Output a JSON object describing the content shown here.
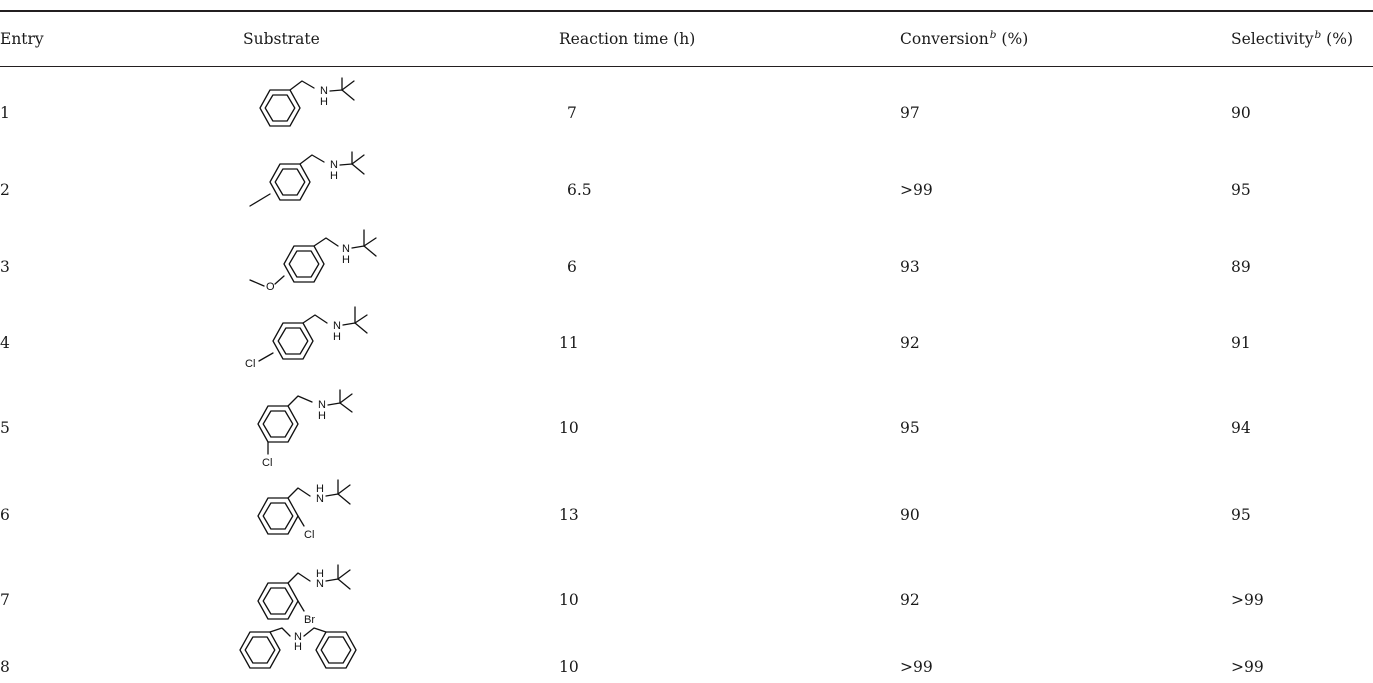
{
  "table": {
    "headers": {
      "entry": "Entry",
      "substrate": "Substrate",
      "time": "Reaction time (h)",
      "conversion": "Conversion",
      "conversion_note": "b",
      "conversion_unit": "(%)",
      "selectivity": "Selectivity",
      "selectivity_note": "b",
      "selectivity_unit": "(%)"
    },
    "rows": [
      {
        "entry": "1",
        "time": "7",
        "conversion": "97",
        "selectivity": "90"
      },
      {
        "entry": "2",
        "time": "6.5",
        "conversion": ">99",
        "selectivity": "95"
      },
      {
        "entry": "3",
        "time": "6",
        "conversion": "93",
        "selectivity": "89"
      },
      {
        "entry": "4",
        "time": "11",
        "conversion": "92",
        "selectivity": "91"
      },
      {
        "entry": "5",
        "time": "10",
        "conversion": "95",
        "selectivity": "94"
      },
      {
        "entry": "6",
        "time": "13",
        "conversion": "90",
        "selectivity": "95"
      },
      {
        "entry": "7",
        "time": "10",
        "conversion": "92",
        "selectivity": ">99"
      },
      {
        "entry": "8",
        "time": "10",
        "conversion": ">99",
        "selectivity": ">99"
      }
    ],
    "atom_labels": {
      "nh_n": "N",
      "nh_h": "H",
      "o": "O",
      "cl": "Cl",
      "br": "Br"
    }
  }
}
